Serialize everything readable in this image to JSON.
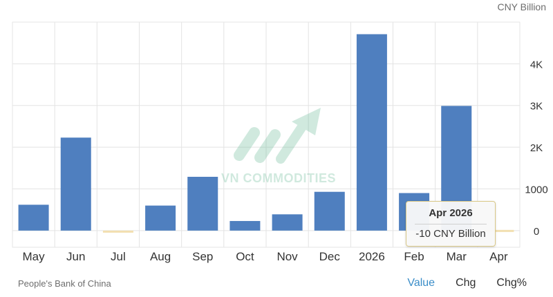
{
  "unit_label": "CNY Billion",
  "source": "People's Bank of China",
  "tabs": [
    "Value",
    "Chg",
    "Chg%"
  ],
  "active_tab": "Value",
  "watermark": "VN COMMODITIES",
  "tooltip": {
    "title": "Apr 2026",
    "value": "-10 CNY Billion"
  },
  "colors": {
    "bar": "#4f7fbf",
    "highlight_bar": "#f2dfb0",
    "grid": "#e3e3e3",
    "tab_active": "#3a8dc8"
  },
  "chart_data": {
    "type": "bar",
    "categories": [
      "May",
      "Jun",
      "Jul",
      "Aug",
      "Sep",
      "Oct",
      "Nov",
      "Dec",
      "2026",
      "Feb",
      "Mar",
      "Apr"
    ],
    "values": [
      620,
      2230,
      -50,
      600,
      1290,
      230,
      390,
      930,
      4710,
      900,
      2990,
      -10
    ],
    "ylim": [
      -400,
      5000
    ],
    "yticks": [
      0,
      1000,
      2000,
      3000,
      4000
    ],
    "ytick_labels": [
      "0",
      "1000",
      "2K",
      "3K",
      "4K"
    ],
    "highlighted_category": "Apr",
    "grid": true
  }
}
